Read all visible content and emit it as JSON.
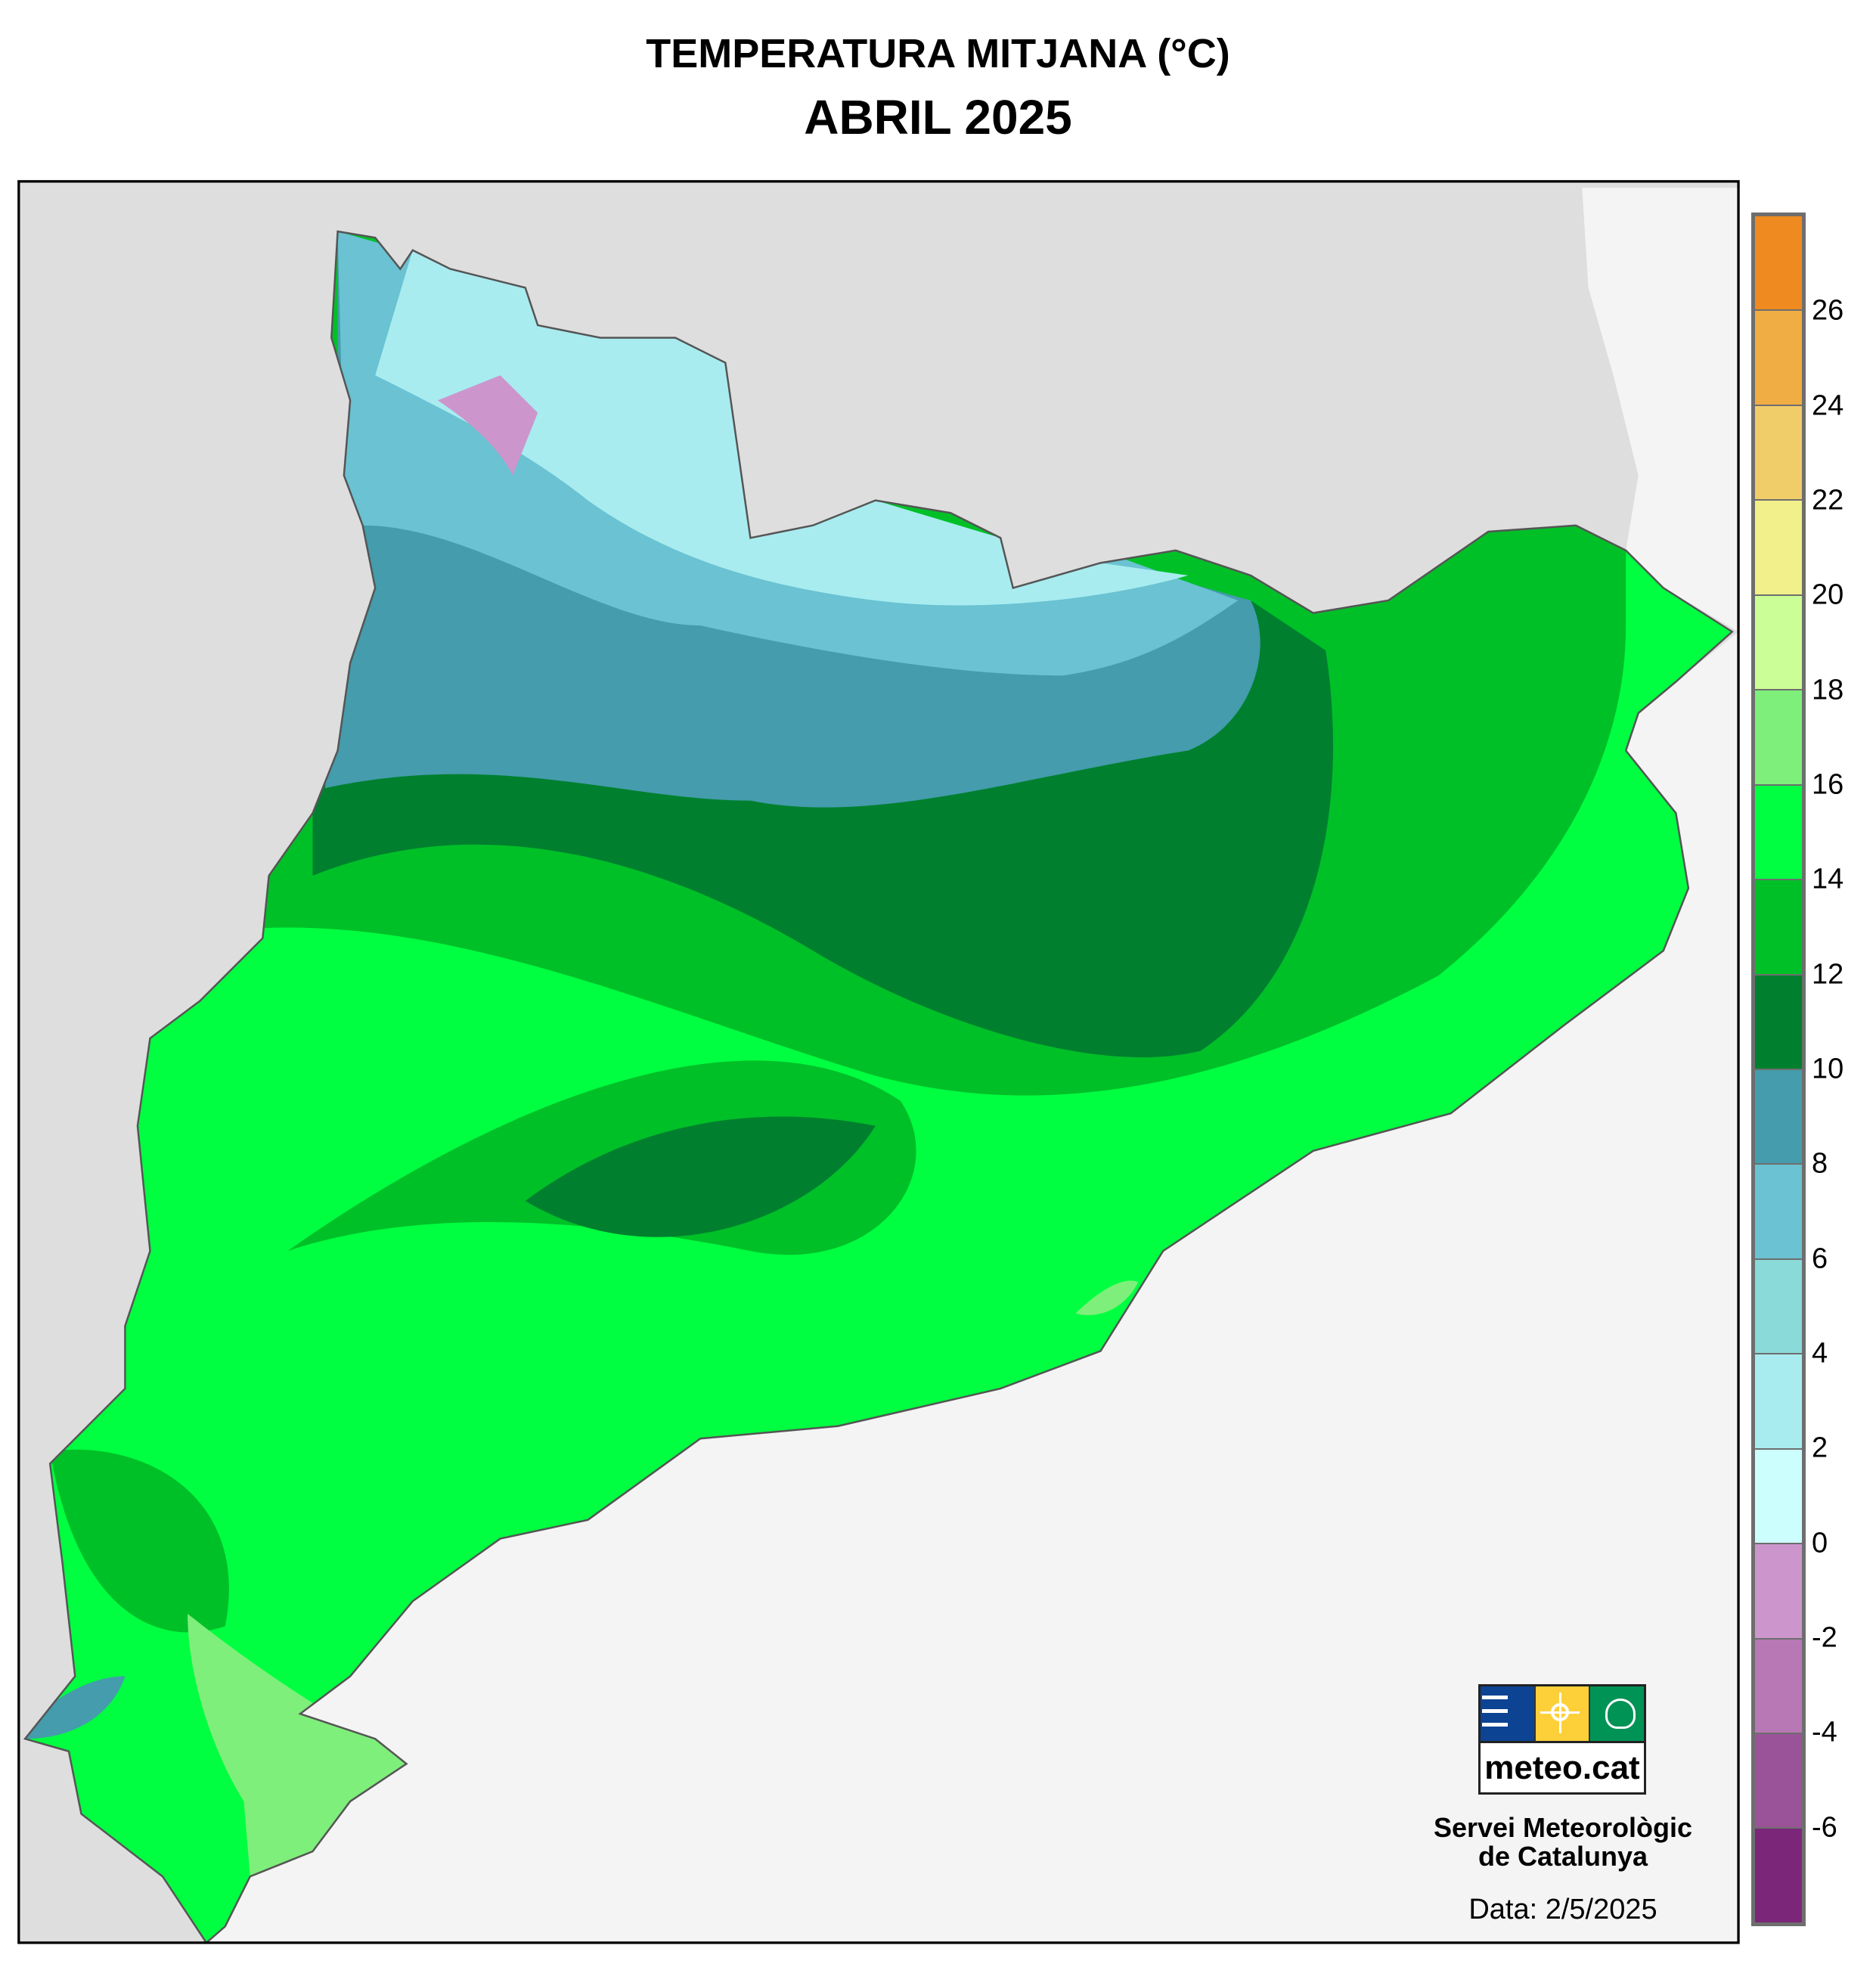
{
  "header": {
    "title": "TEMPERATURA MITJANA (°C)",
    "subtitle": "ABRIL 2025"
  },
  "legend": {
    "bands": [
      {
        "from": 26,
        "to": 28,
        "color": "#ef8a20"
      },
      {
        "from": 24,
        "to": 26,
        "color": "#f0ad44"
      },
      {
        "from": 22,
        "to": 24,
        "color": "#f1cd6a"
      },
      {
        "from": 20,
        "to": 22,
        "color": "#f1f08a"
      },
      {
        "from": 18,
        "to": 20,
        "color": "#ccfe98"
      },
      {
        "from": 16,
        "to": 18,
        "color": "#7eef7a"
      },
      {
        "from": 14,
        "to": 16,
        "color": "#00ff40"
      },
      {
        "from": 12,
        "to": 14,
        "color": "#00c028"
      },
      {
        "from": 10,
        "to": 12,
        "color": "#00802e"
      },
      {
        "from": 8,
        "to": 10,
        "color": "#449cac"
      },
      {
        "from": 6,
        "to": 8,
        "color": "#6ac2d2"
      },
      {
        "from": 4,
        "to": 6,
        "color": "#8adada"
      },
      {
        "from": 2,
        "to": 4,
        "color": "#a8ecf0"
      },
      {
        "from": 0,
        "to": 2,
        "color": "#ccfefe"
      },
      {
        "from": -2,
        "to": 0,
        "color": "#cc96cc"
      },
      {
        "from": -4,
        "to": -2,
        "color": "#b878b6"
      },
      {
        "from": -6,
        "to": -4,
        "color": "#9a5298"
      },
      {
        "from": -8,
        "to": -6,
        "color": "#7c267a"
      }
    ],
    "tick_labels": [
      "26",
      "24",
      "22",
      "20",
      "18",
      "16",
      "14",
      "12",
      "10",
      "8",
      "6",
      "4",
      "2",
      "0",
      "-2",
      "-4",
      "-6"
    ]
  },
  "logo": {
    "text": "meteo.cat",
    "colors": {
      "blue": "#0c4393",
      "yellow": "#fdd03a",
      "green": "#009356"
    }
  },
  "footer": {
    "org_line1": "Servei Meteorològic",
    "org_line2": "de Catalunya",
    "date": "Data: 2/5/2025"
  },
  "map": {
    "colors": {
      "sea": "#f4f4f4",
      "land_outside": "#dedede",
      "border": "#555555"
    }
  }
}
